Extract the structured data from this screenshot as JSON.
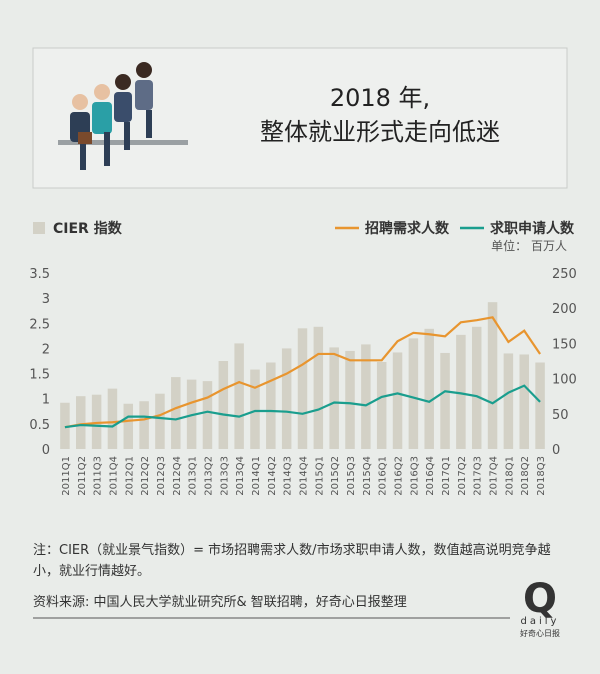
{
  "chart_data": {
    "type": "bar",
    "title": [
      "2018 年,",
      "整体就业形式走向低迷"
    ],
    "unit": "单位： 百万人",
    "categories": [
      "2011Q1",
      "2011Q2",
      "2011Q3",
      "2011Q4",
      "2012Q1",
      "2012Q2",
      "2012Q3",
      "2012Q4",
      "2013Q1",
      "2013Q2",
      "2013Q3",
      "2013Q4",
      "2014Q1",
      "2014Q2",
      "2014Q3",
      "2014Q4",
      "2015Q1",
      "2015Q2",
      "2015Q3",
      "2015Q4",
      "2016Q1",
      "2016Q2",
      "2016Q3",
      "2016Q4",
      "2017Q1",
      "2017Q2",
      "2017Q3",
      "2017Q4",
      "2018Q1",
      "2018Q2",
      "2018Q3"
    ],
    "series": [
      {
        "name": "CIER 指数",
        "type": "bar",
        "color": "#d3d1c6",
        "values": [
          0.92,
          1.05,
          1.08,
          1.2,
          0.9,
          0.95,
          1.1,
          1.43,
          1.38,
          1.35,
          1.75,
          2.1,
          1.58,
          1.72,
          2.0,
          2.4,
          2.43,
          2.02,
          1.95,
          2.08,
          1.73,
          1.92,
          2.2,
          2.39,
          1.91,
          2.27,
          2.43,
          2.92,
          1.9,
          1.88,
          1.72
        ]
      },
      {
        "name": "招聘需求人数",
        "type": "line",
        "axis": "y2",
        "color": "#e8952f",
        "values": [
          31,
          35,
          37,
          38,
          40,
          42,
          48,
          58,
          66,
          73,
          85,
          95,
          87,
          97,
          107,
          120,
          135,
          135,
          126,
          126,
          126,
          153,
          165,
          163,
          160,
          180,
          183,
          187,
          152,
          168,
          135
        ]
      },
      {
        "name": "求职申请人数",
        "type": "line",
        "axis": "y2",
        "color": "#1a9e8e",
        "values": [
          31,
          34,
          33,
          32,
          46,
          46,
          44,
          42,
          48,
          53,
          49,
          46,
          54,
          54,
          53,
          50,
          56,
          66,
          65,
          62,
          74,
          79,
          73,
          67,
          82,
          79,
          75,
          65,
          80,
          90,
          67
        ]
      }
    ],
    "ylim": [
      0,
      3.5
    ],
    "yticks": [
      0,
      0.5,
      1,
      1.5,
      2,
      2.5,
      3,
      3.5
    ],
    "y2lim": [
      0,
      250
    ],
    "y2ticks": [
      0,
      50,
      100,
      150,
      200,
      250
    ],
    "grid": false,
    "note": "注：CIER（就业景气指数）= 市场招聘需求人数/市场求职申请人数，数值越高说明竞争越小，就业行情越好。",
    "source": "资料来源: 中国人民大学就业研究所& 智联招聘，好奇心日报整理",
    "brand": {
      "mark": "Q",
      "word": "daily",
      "name": "好奇心日报"
    }
  }
}
